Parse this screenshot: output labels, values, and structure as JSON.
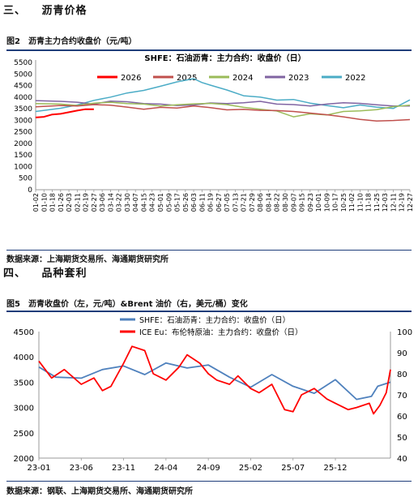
{
  "section3": {
    "number": "三、",
    "title": "沥青价格"
  },
  "section4": {
    "number": "四、",
    "title": "品种套利"
  },
  "figure2": {
    "caption": "图2　沥青主力合约收盘价（元/吨）",
    "source": "数据来源：上海期货交易所、海通期货研究所"
  },
  "figure5": {
    "caption": "图5　沥青收盘价（左，元/吨）&Brent 油价（右，美元/桶）变化",
    "source": "数据来源：钢联、上海期货交易所、海通期货研究所"
  },
  "chart_data": [
    {
      "type": "line",
      "title": "SHFE：石油沥青：主力合约：收盘价（日）",
      "x_ticks": [
        "01-02",
        "01-10",
        "01-18",
        "01-26",
        "02-03",
        "02-11",
        "02-19",
        "02-27",
        "03-06",
        "03-14",
        "03-22",
        "03-30",
        "04-07",
        "04-15",
        "04-23",
        "05-01",
        "05-09",
        "05-17",
        "05-26",
        "06-03",
        "06-11",
        "06-19",
        "06-27",
        "07-05",
        "07-13",
        "07-21",
        "07-29",
        "08-06",
        "08-14",
        "08-22",
        "08-30",
        "09-07",
        "09-15",
        "09-23",
        "10-01",
        "10-09",
        "10-17",
        "10-25",
        "11-02",
        "11-10",
        "11-18",
        "11-25",
        "12-03",
        "12-11",
        "12-19",
        "12-27"
      ],
      "ylim": [
        0,
        5500
      ],
      "yticks": [
        0,
        500,
        1000,
        1500,
        2000,
        2500,
        3000,
        3500,
        4000,
        4500,
        5000,
        5500
      ],
      "grid": false,
      "legend": "top",
      "series": [
        {
          "name": "2026",
          "color": "#ff0000",
          "x": [
            0,
            1,
            2,
            3,
            4,
            5,
            6,
            7
          ],
          "values": [
            3120,
            3150,
            3250,
            3280,
            3350,
            3420,
            3480,
            3480
          ]
        },
        {
          "name": "2025",
          "color": "#c0504d",
          "x": [
            0,
            3,
            5,
            7,
            9,
            11,
            13,
            15,
            17,
            19,
            21,
            23,
            25,
            27,
            29,
            31,
            33,
            35,
            37,
            39,
            41,
            43,
            45
          ],
          "values": [
            3580,
            3640,
            3620,
            3680,
            3650,
            3570,
            3480,
            3560,
            3530,
            3620,
            3550,
            3450,
            3470,
            3430,
            3420,
            3380,
            3310,
            3240,
            3150,
            3040,
            2970,
            2990,
            3030
          ]
        },
        {
          "name": "2024",
          "color": "#9bbb59",
          "x": [
            0,
            3,
            5,
            7,
            9,
            11,
            13,
            15,
            17,
            19,
            21,
            23,
            25,
            27,
            29,
            31,
            33,
            35,
            37,
            39,
            41,
            43,
            45
          ],
          "values": [
            3720,
            3700,
            3640,
            3740,
            3780,
            3720,
            3700,
            3620,
            3670,
            3710,
            3730,
            3680,
            3560,
            3480,
            3400,
            3150,
            3280,
            3230,
            3380,
            3410,
            3460,
            3590,
            3650
          ]
        },
        {
          "name": "2023",
          "color": "#8064a2",
          "x": [
            0,
            3,
            5,
            7,
            9,
            11,
            13,
            15,
            17,
            19,
            21,
            23,
            25,
            27,
            29,
            31,
            33,
            35,
            37,
            39,
            41,
            43,
            45
          ],
          "values": [
            3850,
            3820,
            3780,
            3700,
            3830,
            3800,
            3720,
            3700,
            3640,
            3660,
            3750,
            3720,
            3760,
            3820,
            3700,
            3680,
            3620,
            3700,
            3760,
            3730,
            3670,
            3620,
            3620
          ]
        },
        {
          "name": "2022",
          "color": "#4bacc6",
          "x": [
            0,
            3,
            5,
            7,
            9,
            11,
            13,
            15,
            17,
            19,
            20,
            21,
            23,
            25,
            27,
            29,
            31,
            33,
            35,
            37,
            39,
            41,
            43,
            45
          ],
          "values": [
            3380,
            3520,
            3660,
            3860,
            4000,
            4180,
            4290,
            4470,
            4660,
            4800,
            4630,
            4520,
            4310,
            4060,
            4000,
            3870,
            3900,
            3740,
            3640,
            3540,
            3660,
            3570,
            3510,
            3880
          ]
        }
      ]
    },
    {
      "type": "line",
      "x_ticks": [
        "23-01",
        "23-06",
        "23-11",
        "24-04",
        "24-09",
        "25-02",
        "25-07",
        "25-12"
      ],
      "ylim_left": [
        2000,
        4500
      ],
      "yticks_left": [
        2000,
        2500,
        3000,
        3500,
        4000,
        4500
      ],
      "ylim_right": [
        40,
        100
      ],
      "yticks_right": [
        40,
        50,
        60,
        70,
        80,
        90,
        100
      ],
      "grid": false,
      "legend": "top",
      "series": [
        {
          "name": "SHFE：石油沥青：主力合约：收盘价（日）",
          "axis": "left",
          "color": "#4f81bd",
          "x": [
            0,
            0.4,
            1,
            1.5,
            2,
            2.5,
            3,
            3.5,
            4,
            4.5,
            5,
            5.5,
            6,
            6.5,
            7,
            7.5,
            7.85,
            8,
            8.3
          ],
          "values": [
            3800,
            3600,
            3580,
            3750,
            3820,
            3650,
            3880,
            3780,
            3840,
            3600,
            3400,
            3650,
            3420,
            3280,
            3550,
            3160,
            3220,
            3420,
            3500
          ]
        },
        {
          "name": "ICE Eu：布伦特原油：主力合约：收盘价（日）",
          "axis": "right",
          "color": "#ff0000",
          "x": [
            0,
            0.3,
            0.6,
            1,
            1.3,
            1.5,
            1.7,
            2,
            2.2,
            2.5,
            2.7,
            3,
            3.3,
            3.5,
            3.8,
            4,
            4.2,
            4.5,
            4.7,
            5,
            5.2,
            5.5,
            5.8,
            6,
            6.2,
            6.5,
            6.8,
            7,
            7.3,
            7.5,
            7.8,
            7.9,
            8.05,
            8.2,
            8.3
          ],
          "values": [
            86,
            78,
            82,
            75,
            78,
            72,
            74,
            85,
            93,
            91,
            80,
            77,
            83,
            89,
            85,
            80,
            77,
            75,
            79,
            73,
            71,
            75,
            63,
            62,
            70,
            73,
            68,
            66,
            63,
            64,
            66,
            61,
            65,
            71,
            82
          ]
        }
      ]
    }
  ]
}
